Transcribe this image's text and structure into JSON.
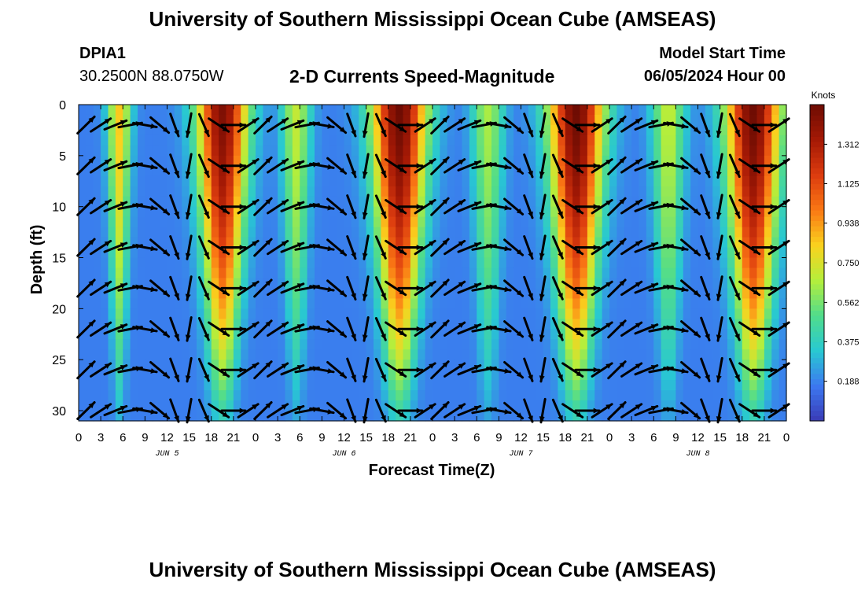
{
  "page": {
    "title": "University of Southern Mississippi Ocean Cube (AMSEAS)",
    "bottom_title": "University of Southern Mississippi Ocean Cube (AMSEAS)",
    "station": "DPIA1",
    "coordinates": "30.2500N  88.0750W",
    "subtitle": "2-D Currents Speed-Magnitude",
    "model_start_label": "Model Start Time",
    "model_start_value": "06/05/2024 Hour 00"
  },
  "chart_data": {
    "type": "heatmap",
    "title": "2-D Currents Speed-Magnitude",
    "xlabel": "Forecast Time(Z)",
    "ylabel": "Depth (ft)",
    "x_ticks": [
      "0",
      "3",
      "6",
      "9",
      "12",
      "15",
      "18",
      "21",
      "0",
      "3",
      "6",
      "9",
      "12",
      "15",
      "18",
      "21",
      "0",
      "3",
      "6",
      "9",
      "12",
      "15",
      "18",
      "21",
      "0",
      "3",
      "6",
      "9",
      "12",
      "15",
      "18",
      "21",
      "0"
    ],
    "x_range_hours": [
      0,
      96
    ],
    "day_labels": [
      {
        "label": "JUN 5",
        "hour": 12
      },
      {
        "label": "JUN 6",
        "hour": 36
      },
      {
        "label": "JUN 7",
        "hour": 60
      },
      {
        "label": "JUN 8",
        "hour": 84
      }
    ],
    "y_ticks": [
      0,
      5,
      10,
      15,
      20,
      25,
      30
    ],
    "y_range_ft": [
      0,
      31
    ],
    "y_inverted": true,
    "colorbar": {
      "unit": "Knots",
      "ticks": [
        "0.188",
        "0.375",
        "0.562",
        "0.750",
        "0.938",
        "1.125",
        "1.312"
      ],
      "range": [
        0,
        1.5
      ],
      "colors": [
        "#3a3ab4",
        "#3c78f0",
        "#28c8d2",
        "#50dc8c",
        "#b4ee3c",
        "#fad21e",
        "#fa7814",
        "#dc3c0f",
        "#a51905",
        "#6e0c03"
      ]
    },
    "speed_peaks_knots": [
      {
        "hour": 5.5,
        "width_hours": 1.6,
        "peak": 0.85
      },
      {
        "hour": 19.5,
        "width_hours": 3.5,
        "peak": 1.45
      },
      {
        "hour": 29.5,
        "width_hours": 2.0,
        "peak": 0.7
      },
      {
        "hour": 43.5,
        "width_hours": 3.8,
        "peak": 1.5
      },
      {
        "hour": 55.5,
        "width_hours": 2.2,
        "peak": 0.65
      },
      {
        "hour": 67.5,
        "width_hours": 3.8,
        "peak": 1.5
      },
      {
        "hour": 80.0,
        "width_hours": 2.3,
        "peak": 0.7
      },
      {
        "hour": 91.5,
        "width_hours": 3.8,
        "peak": 1.5
      }
    ],
    "vector_phases": [
      {
        "hour": 0,
        "state": "flood"
      },
      {
        "hour": 8,
        "state": "east"
      },
      {
        "hour": 15,
        "state": "ebb"
      },
      {
        "hour": 24,
        "state": "flood"
      },
      {
        "hour": 32,
        "state": "east"
      },
      {
        "hour": 39,
        "state": "ebb"
      },
      {
        "hour": 48,
        "state": "flood"
      },
      {
        "hour": 56,
        "state": "east"
      },
      {
        "hour": 63,
        "state": "ebb"
      },
      {
        "hour": 72,
        "state": "flood"
      },
      {
        "hour": 80,
        "state": "east"
      },
      {
        "hour": 87,
        "state": "ebb"
      },
      {
        "hour": 96,
        "state": "flood"
      }
    ]
  }
}
